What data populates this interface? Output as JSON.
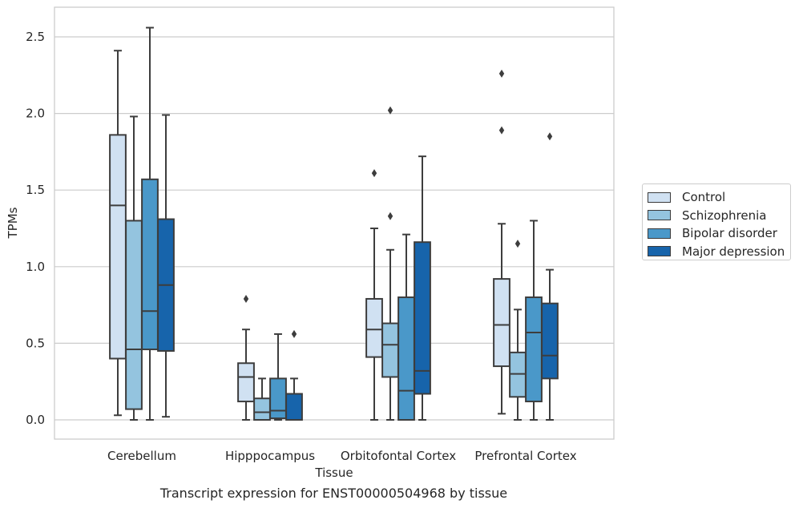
{
  "caption": "Transcript expression for ENST00000504968 by tissue",
  "chart_data": {
    "type": "box",
    "xlabel": "Tissue",
    "ylabel": "TPMs",
    "ylim": [
      -0.12,
      2.7
    ],
    "yticks": [
      0.0,
      0.5,
      1.0,
      1.5,
      2.0,
      2.5
    ],
    "ytick_labels": [
      "0.0",
      "0.5",
      "1.0",
      "1.5",
      "2.0",
      "2.5"
    ],
    "grid": "horizontal",
    "legend_position": "right",
    "categories": [
      "Cerebellum",
      "Hipppocampus",
      "Orbitofontal Cortex",
      "Prefrontal Cortex"
    ],
    "series": [
      {
        "name": "Control",
        "color": "#d0e1f2",
        "boxes": [
          {
            "whislo": 0.03,
            "q1": 0.4,
            "med": 1.4,
            "q3": 1.86,
            "whishi": 2.41,
            "fliers": []
          },
          {
            "whislo": 0.0,
            "q1": 0.12,
            "med": 0.28,
            "q3": 0.37,
            "whishi": 0.59,
            "fliers": [
              0.79
            ]
          },
          {
            "whislo": 0.0,
            "q1": 0.41,
            "med": 0.59,
            "q3": 0.79,
            "whishi": 1.25,
            "fliers": [
              1.61
            ]
          },
          {
            "whislo": 0.04,
            "q1": 0.35,
            "med": 0.62,
            "q3": 0.92,
            "whishi": 1.28,
            "fliers": [
              1.89,
              2.26
            ]
          }
        ]
      },
      {
        "name": "Schizophrenia",
        "color": "#94c4df",
        "boxes": [
          {
            "whislo": 0.0,
            "q1": 0.07,
            "med": 0.46,
            "q3": 1.3,
            "whishi": 1.98,
            "fliers": []
          },
          {
            "whislo": 0.0,
            "q1": 0.0,
            "med": 0.05,
            "q3": 0.14,
            "whishi": 0.27,
            "fliers": []
          },
          {
            "whislo": 0.0,
            "q1": 0.28,
            "med": 0.49,
            "q3": 0.63,
            "whishi": 1.11,
            "fliers": [
              1.33,
              2.02
            ]
          },
          {
            "whislo": 0.0,
            "q1": 0.15,
            "med": 0.3,
            "q3": 0.44,
            "whishi": 0.72,
            "fliers": [
              1.15
            ]
          }
        ]
      },
      {
        "name": "Bipolar disorder",
        "color": "#4a98c9",
        "boxes": [
          {
            "whislo": 0.0,
            "q1": 0.46,
            "med": 0.71,
            "q3": 1.57,
            "whishi": 2.56,
            "fliers": []
          },
          {
            "whislo": 0.0,
            "q1": 0.01,
            "med": 0.06,
            "q3": 0.27,
            "whishi": 0.56,
            "fliers": []
          },
          {
            "whislo": 0.0,
            "q1": 0.0,
            "med": 0.19,
            "q3": 0.8,
            "whishi": 1.21,
            "fliers": []
          },
          {
            "whislo": 0.0,
            "q1": 0.12,
            "med": 0.57,
            "q3": 0.8,
            "whishi": 1.3,
            "fliers": []
          }
        ]
      },
      {
        "name": "Major depression",
        "color": "#1764ab",
        "boxes": [
          {
            "whislo": 0.02,
            "q1": 0.45,
            "med": 0.88,
            "q3": 1.31,
            "whishi": 1.99,
            "fliers": []
          },
          {
            "whislo": 0.0,
            "q1": 0.0,
            "med": 0.0,
            "q3": 0.17,
            "whishi": 0.27,
            "fliers": [
              0.56
            ]
          },
          {
            "whislo": 0.0,
            "q1": 0.17,
            "med": 0.32,
            "q3": 1.16,
            "whishi": 1.72,
            "fliers": []
          },
          {
            "whislo": 0.0,
            "q1": 0.27,
            "med": 0.42,
            "q3": 0.76,
            "whishi": 0.98,
            "fliers": [
              1.85
            ]
          }
        ]
      }
    ]
  }
}
